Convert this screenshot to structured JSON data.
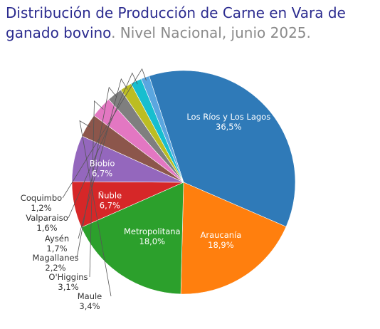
{
  "header": {
    "title": "Distribución de Producción de Carne en Vara de ganado bovino",
    "subtitle": ". Nivel Nacional, junio 2025."
  },
  "chart_data": {
    "type": "pie",
    "title": "Distribución de Producción de Carne en Vara de ganado bovino",
    "subtitle": "Nivel Nacional, junio 2025.",
    "unit": "%",
    "slices": [
      {
        "label": "Los Ríos y Los Lagos",
        "value": 36.5,
        "display": "36,5%",
        "color": "#2f7ab8"
      },
      {
        "label": "Araucanía",
        "value": 18.9,
        "display": "18,9%",
        "color": "#ff7f0e"
      },
      {
        "label": "Metropolitana",
        "value": 18.0,
        "display": "18,0%",
        "color": "#2ca02c"
      },
      {
        "label": "Ñuble",
        "value": 6.7,
        "display": "6,7%",
        "color": "#d62728"
      },
      {
        "label": "Biobío",
        "value": 6.7,
        "display": "6,7%",
        "color": "#9467bd"
      },
      {
        "label": "Maule",
        "value": 3.4,
        "display": "3,4%",
        "color": "#8c564b"
      },
      {
        "label": "O'Higgins",
        "value": 3.1,
        "display": "3,1%",
        "color": "#e377c2"
      },
      {
        "label": "Magallanes",
        "value": 2.2,
        "display": "2,2%",
        "color": "#7f7f7f"
      },
      {
        "label": "Aysén",
        "value": 1.7,
        "display": "1,7%",
        "color": "#bcbd22"
      },
      {
        "label": "Valparaiso",
        "value": 1.6,
        "display": "1,6%",
        "color": "#17becf"
      },
      {
        "label": "Coquimbo",
        "value": 1.2,
        "display": "1,2%",
        "color": "#5aa6e0"
      }
    ]
  }
}
